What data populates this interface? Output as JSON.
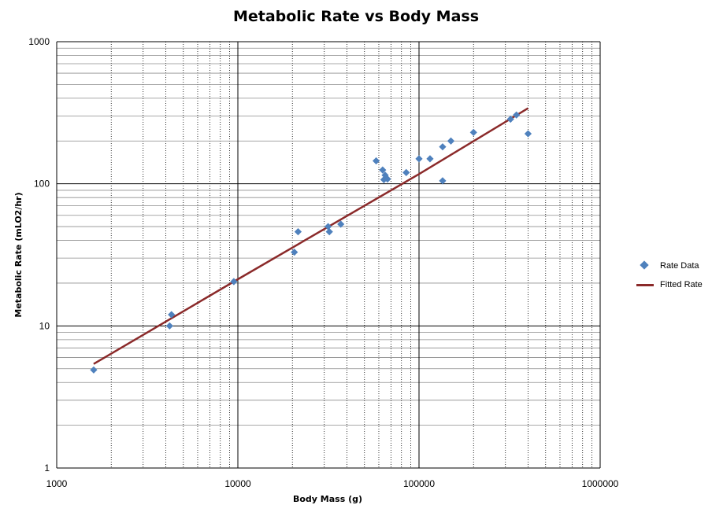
{
  "chart_data": {
    "type": "scatter",
    "title": "Metabolic Rate vs Body Mass",
    "xlabel": "Body Mass (g)",
    "ylabel": "Metabolic Rate (mLO2/hr)",
    "x_scale": "log",
    "y_scale": "log",
    "xlim": [
      1000,
      1000000
    ],
    "ylim": [
      1,
      1000
    ],
    "x_ticks": [
      "1000",
      "10000",
      "100000",
      "1000000"
    ],
    "y_ticks": [
      "1",
      "10",
      "100",
      "1000"
    ],
    "grid": true,
    "legend_position": "right",
    "series": [
      {
        "name": "Rate Data",
        "kind": "scatter",
        "marker": "diamond",
        "color": "#4F81BD",
        "points": [
          [
            1600,
            4.9
          ],
          [
            4200,
            10
          ],
          [
            4300,
            12
          ],
          [
            9500,
            20.5
          ],
          [
            20500,
            33
          ],
          [
            21500,
            46
          ],
          [
            31500,
            50
          ],
          [
            32000,
            46
          ],
          [
            37000,
            52
          ],
          [
            58000,
            145
          ],
          [
            63000,
            125
          ],
          [
            64000,
            107
          ],
          [
            65000,
            115
          ],
          [
            67000,
            108
          ],
          [
            85000,
            120
          ],
          [
            100000,
            150
          ],
          [
            115000,
            150
          ],
          [
            135000,
            105
          ],
          [
            135000,
            182
          ],
          [
            150000,
            200
          ],
          [
            200000,
            230
          ],
          [
            320000,
            285
          ],
          [
            345000,
            305
          ],
          [
            400000,
            225
          ]
        ]
      },
      {
        "name": "Fitted Rate",
        "kind": "line",
        "color": "#8B2A2A",
        "points": [
          [
            1600,
            5.4
          ],
          [
            9500,
            20.5
          ],
          [
            100000,
            117
          ],
          [
            400000,
            340
          ]
        ]
      }
    ]
  }
}
